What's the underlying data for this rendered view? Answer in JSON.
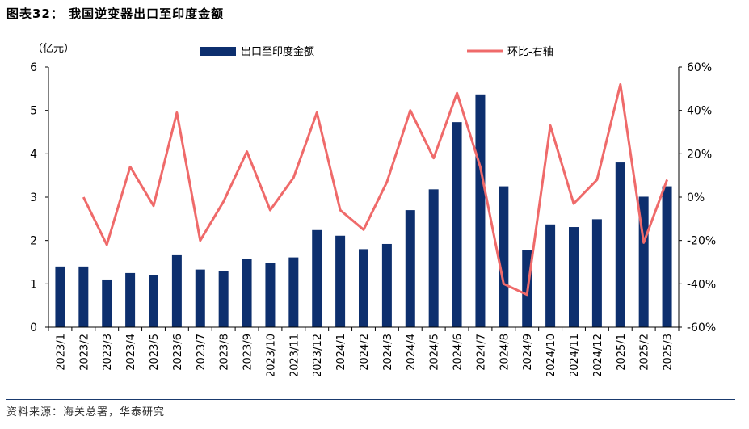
{
  "figure": {
    "title": "图表32：  我国逆变器出口至印度金额",
    "source": "资料来源：海关总署，华泰研究"
  },
  "chart_data": {
    "type": "bar",
    "categories": [
      "2023/1",
      "2023/2",
      "2023/3",
      "2023/4",
      "2023/5",
      "2023/6",
      "2023/7",
      "2023/8",
      "2023/9",
      "2023/10",
      "2023/11",
      "2023/12",
      "2024/1",
      "2024/2",
      "2024/3",
      "2024/4",
      "2024/5",
      "2024/6",
      "2024/7",
      "2024/8",
      "2024/9",
      "2024/10",
      "2024/11",
      "2024/12",
      "2025/1",
      "2025/2",
      "2025/3"
    ],
    "series": [
      {
        "name": "出口至印度金额",
        "type": "bar",
        "axis": "left",
        "color": "#0d2f6e",
        "values": [
          1.4,
          1.4,
          1.1,
          1.25,
          1.2,
          1.66,
          1.33,
          1.3,
          1.57,
          1.49,
          1.61,
          2.24,
          2.11,
          1.8,
          1.92,
          2.7,
          3.18,
          4.73,
          5.37,
          3.25,
          1.77,
          2.37,
          2.31,
          2.49,
          3.8,
          3.01,
          3.25
        ]
      },
      {
        "name": "环比-右轴",
        "type": "line",
        "axis": "right",
        "color": "#ef6a6a",
        "values": [
          null,
          0.0,
          -22,
          14,
          -4,
          39,
          -20,
          -2,
          21,
          -6,
          9,
          39,
          -6,
          -15,
          7,
          40,
          18,
          48,
          14,
          -40,
          -45,
          33,
          -3,
          8,
          52,
          -21,
          8
        ]
      }
    ],
    "left_axis": {
      "unit_label": "（亿元）",
      "min": 0,
      "max": 6,
      "ticks": [
        "0",
        "1",
        "2",
        "3",
        "4",
        "5",
        "6"
      ]
    },
    "right_axis": {
      "min": -60,
      "max": 60,
      "ticks": [
        "-60%",
        "-40%",
        "-20%",
        "0%",
        "20%",
        "40%",
        "60%"
      ]
    },
    "legend": {
      "placement": "top"
    },
    "grid": false
  }
}
